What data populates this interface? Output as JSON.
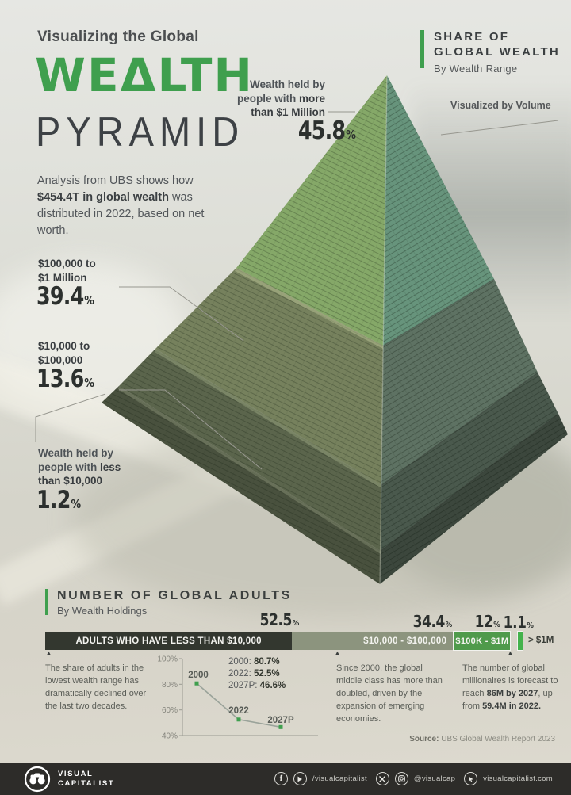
{
  "percent": "%",
  "title": {
    "eyebrow": "Visualizing the Global",
    "main": "WEΔLTH",
    "sub": "PYRAMID"
  },
  "intro": {
    "pre": "Analysis from UBS shows how ",
    "bold": "$454.4T in global wealth",
    "post": " was distributed in 2022, based on net worth."
  },
  "share_header": {
    "line1": "SHARE OF",
    "line2": "GLOBAL WEALTH",
    "sub": "By Wealth Range"
  },
  "volume_note": "Visualized by Volume",
  "tiers": {
    "millionaires": {
      "l1": "Wealth held by",
      "l2_pre": "people with ",
      "l2_bold": "more",
      "l3_bold": "than $1 Million",
      "value": "45.8"
    },
    "upper": {
      "l1": "$100,000 to",
      "l2": "$1 Million",
      "value": "39.4"
    },
    "middle": {
      "l1": "$10,000 to",
      "l2": "$100,000",
      "value": "13.6"
    },
    "base": {
      "l1": "Wealth held by",
      "l2_pre": "people with ",
      "l2_bold": "less",
      "l3_bold": "than $10,000",
      "value": "1.2"
    }
  },
  "adults": {
    "heading": "NUMBER OF GLOBAL ADULTS",
    "subheading": "By Wealth Holdings",
    "seg_pcts": [
      "52.5",
      "34.4",
      "12",
      "1.1"
    ],
    "segments": [
      "ADULTS WHO HAVE LESS THAN $10,000",
      "$10,000 - $100,000",
      "$100K - $1M",
      "> $1M"
    ],
    "notes": {
      "n1": "The share of adults in the lowest wealth range has dramatically declined over the last two decades.",
      "n2": "Since 2000, the global middle class has more than doubled, driven by the expansion of emerging economies.",
      "n3_pre": "The number of global millionaires is forecast to reach ",
      "n3_b1": "86M by 2027",
      "n3_mid": ", up from ",
      "n3_b2": "59.4M in 2022."
    }
  },
  "trend_legend": [
    {
      "label": "2000:",
      "value": "80.7%"
    },
    {
      "label": "2022:",
      "value": "52.5%"
    },
    {
      "label": "2027P:",
      "value": "46.6%"
    }
  ],
  "source": {
    "label": "Source:",
    "text": " UBS Global Wealth Report 2023"
  },
  "footer": {
    "brand1": "VISUAL",
    "brand2": "CAPITALIST",
    "handle_fb_yt": "/visualcapitalist",
    "handle_x_ig": "@visualcap",
    "website": "visualcapitalist.com"
  },
  "colors": {
    "accent_green": "#3f9f4e",
    "pyr_green_l": "#85a868",
    "pyr_green_r": "#67947c",
    "pyr_olive_l": "#76815d",
    "pyr_olive_r": "#5e7263",
    "pyr_dark_l": "#5b654c",
    "pyr_dark_r": "#4a594d",
    "pyr_base_l": "#49513e",
    "pyr_base_r": "#3c473d",
    "seg1": "#33372f",
    "seg2": "#8c947e",
    "seg3": "#4f9a4b",
    "seg4": "#44b24c",
    "footer_bg": "#2d2c29"
  },
  "chart_data": [
    {
      "type": "pyramid",
      "title": "Share of Global Wealth by Wealth Range",
      "unit": "%",
      "note": "Visualized by Volume",
      "total_wealth": "$454.4T",
      "year": "2022",
      "categories": [
        "More than $1 Million",
        "$100,000 to $1 Million",
        "$10,000 to $100,000",
        "Less than $10,000"
      ],
      "values": [
        45.8,
        39.4,
        13.6,
        1.2
      ]
    },
    {
      "type": "bar",
      "title": "Number of Global Adults by Wealth Holdings",
      "unit": "%",
      "categories": [
        "Adults who have less than $10,000",
        "$10,000 - $100,000",
        "$100K - $1M",
        "> $1M"
      ],
      "values": [
        52.5,
        34.4,
        12,
        1.1
      ]
    },
    {
      "type": "line",
      "title": "Adults with less than $10,000",
      "unit": "%",
      "x": [
        "2000",
        "2022",
        "2027P"
      ],
      "values": [
        80.7,
        52.5,
        46.6
      ],
      "ylim": [
        40,
        100
      ],
      "yticks": [
        "100%",
        "80%",
        "60%",
        "40%"
      ],
      "grid": false,
      "legend_position": "top-right"
    }
  ]
}
